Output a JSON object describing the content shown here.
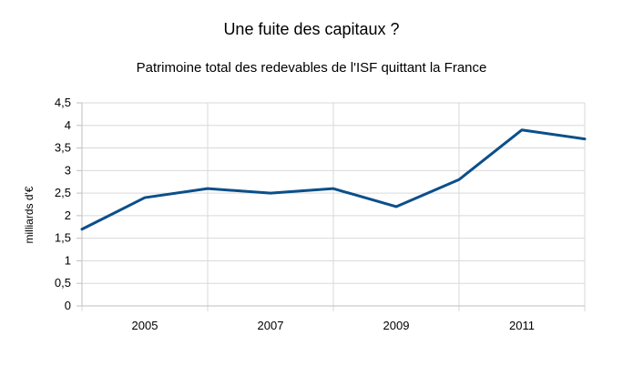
{
  "chart_data": {
    "type": "line",
    "title": "Une fuite des capitaux ?",
    "subtitle": "Patrimoine total des redevables de l'ISF quittant la France",
    "xlabel": "",
    "ylabel": "milliards d'€",
    "x": [
      2004,
      2005,
      2006,
      2007,
      2008,
      2009,
      2010,
      2011,
      2012
    ],
    "xlim": [
      2004,
      2012
    ],
    "x_tick_labels": [
      "2005",
      "2007",
      "2009",
      "2011"
    ],
    "series": [
      {
        "values": [
          1.7,
          2.4,
          2.6,
          2.5,
          2.6,
          2.2,
          2.8,
          3.9,
          3.7
        ],
        "color": "#0b4f8a"
      }
    ],
    "ylim": [
      0,
      4.5
    ],
    "y_tick_labels": [
      "0",
      "0,5",
      "1",
      "1,5",
      "2",
      "2,5",
      "3",
      "3,5",
      "4",
      "4,5"
    ],
    "grid": true,
    "legend": "none"
  }
}
